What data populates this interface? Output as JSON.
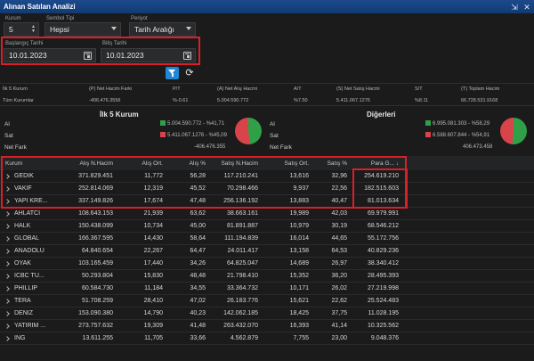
{
  "window": {
    "title": "Alınan Satılan Analizi",
    "pin_icon": "⇲",
    "close_icon": "✕"
  },
  "filters": {
    "kurum_label": "Kurum",
    "kurum_value": "5",
    "sembol_label": "Sembol Tipi",
    "sembol_value": "Hepsi",
    "periyot_label": "Periyot",
    "periyot_value": "Tarih Aralığı",
    "start_label": "Başlangıç Tarihi",
    "start_value": "10.01.2023",
    "end_label": "Bitiş Tarihi",
    "end_value": "10.01.2023"
  },
  "summary": {
    "headers": [
      "İlk 5 Kurum",
      "(P) Net Hacim Farkı",
      "P/T",
      "(A) Net Alış Hacmi",
      "A/T",
      "(S) Net Satış Hacmi",
      "S/T",
      "(T) Toplam Hacim"
    ],
    "values": [
      "Tüm Kurumlar",
      "-406.476.3556",
      "%-0.61",
      "5.004.590.772",
      "%7.50",
      "5.411.067.1276",
      "%8.11",
      "66.728.531.9168"
    ]
  },
  "top5": {
    "title": "İlk 5 Kurum",
    "al_label": "Al",
    "al_value": "5.004.590.772 - %41,71",
    "sat_label": "Sat",
    "sat_value": "5.411.067.1276 - %45,09",
    "net_label": "Net Fark",
    "net_value": "-406.476.355"
  },
  "others": {
    "title": "Diğerleri",
    "al_label": "Al",
    "al_value": "6.995.081.303 - %58,29",
    "sat_label": "Sat",
    "sat_value": "6.588.607.844 - %54,91",
    "net_label": "Net Fark",
    "net_value": "406.473.458"
  },
  "colors": {
    "accent": "#1f87d6",
    "highlight": "#d9202a",
    "buy": "#2fa048",
    "sell": "#d9434a"
  },
  "table": {
    "columns": [
      "Kurum",
      "Alış N.Hacim",
      "Alış Ort.",
      "Alış %",
      "Satış N.Hacim",
      "Satış Ort.",
      "Satış %",
      "Para G... ↓"
    ],
    "rows": [
      [
        "GEDIK",
        "371.829.451",
        "11,772",
        "56,28",
        "117.210.241",
        "13,616",
        "32,96",
        "254.619.210"
      ],
      [
        "VAKIF",
        "252.814.069",
        "12,319",
        "45,52",
        "70.298.466",
        "9,937",
        "22,56",
        "182.515.603"
      ],
      [
        "YAPI KRE...",
        "337.149.826",
        "17,674",
        "47,48",
        "256.136.192",
        "13,883",
        "40,47",
        "81.013.634"
      ],
      [
        "AHLATCI",
        "108.643.153",
        "21,939",
        "63,62",
        "38.663.161",
        "19,989",
        "42,03",
        "69.979.991"
      ],
      [
        "HALK",
        "150.438.099",
        "10,734",
        "45,00",
        "81.891.887",
        "10,979",
        "30,19",
        "68.546.212"
      ],
      [
        "GLOBAL",
        "166.367.595",
        "14,430",
        "58,64",
        "111.194.839",
        "16,014",
        "44,65",
        "55.172.756"
      ],
      [
        "ANADOLU",
        "64.840.654",
        "22,267",
        "64,47",
        "24.011.417",
        "13,158",
        "64,53",
        "40.829.236"
      ],
      [
        "OYAK",
        "103.165.459",
        "17,440",
        "34,26",
        "64.825.047",
        "14,689",
        "26,97",
        "38.340.412"
      ],
      [
        "ICBC TU...",
        "50.293.804",
        "15,830",
        "48,48",
        "21.798.410",
        "15,352",
        "36,20",
        "28.495.393"
      ],
      [
        "PHILLIP",
        "60.584.730",
        "11,184",
        "34,55",
        "33.364.732",
        "10,171",
        "26,02",
        "27.219.998"
      ],
      [
        "TERA",
        "51.708.259",
        "28,410",
        "47,02",
        "26.183.776",
        "15,621",
        "22,62",
        "25.524.483"
      ],
      [
        "DENIZ",
        "153.090.380",
        "14,790",
        "40,23",
        "142.062.185",
        "18,425",
        "37,75",
        "11.028.195"
      ],
      [
        "YATIRIM ...",
        "273.757.632",
        "19,309",
        "41,48",
        "263.432.070",
        "16,393",
        "41,14",
        "10.325.562"
      ],
      [
        "ING",
        "13.611.255",
        "11,705",
        "33,66",
        "4.562.879",
        "7,755",
        "23,00",
        "9.048.376"
      ]
    ]
  }
}
